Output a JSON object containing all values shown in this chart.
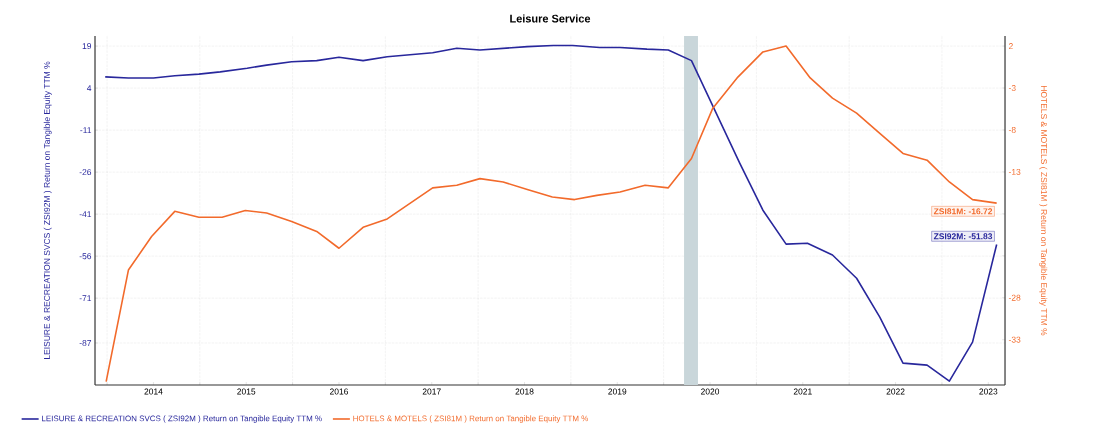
{
  "chart_data": {
    "type": "line",
    "title": "Leisure Service",
    "ylabel": "LEISURE & RECREATION SVCS ( ZSI92M ) Return on Tangible Equity TTM %",
    "y2label": "HOTELS & MOTELS ( ZSI81M ) Return on Tangible Equity TTM %",
    "xlim": [
      2013.87,
      2023.68
    ],
    "xticks": [
      {
        "value": 2014.5,
        "label": "2014"
      },
      {
        "value": 2015.5,
        "label": "2015"
      },
      {
        "value": 2016.5,
        "label": "2016"
      },
      {
        "value": 2017.5,
        "label": "2017"
      },
      {
        "value": 2018.5,
        "label": "2018"
      },
      {
        "value": 2019.5,
        "label": "2019"
      },
      {
        "value": 2020.5,
        "label": "2020"
      },
      {
        "value": 2021.5,
        "label": "2021"
      },
      {
        "value": 2022.5,
        "label": "2022"
      },
      {
        "value": 2023.5,
        "label": "2023"
      }
    ],
    "ylim": [
      -102,
      22.6
    ],
    "yticks": [
      19,
      4,
      -11,
      -26,
      -41,
      -56,
      -71,
      -87
    ],
    "y2lim": [
      -38.4,
      3.2
    ],
    "y2ticks": [
      2,
      -3,
      -8,
      -13,
      {
        "value": -18,
        "label": null
      },
      {
        "value": -23,
        "label": null
      },
      -28,
      -33
    ],
    "bands": [
      {
        "axis": "x",
        "from": 2020.22,
        "to": 2020.37,
        "color": "#c9d6da"
      }
    ],
    "grid": true,
    "legend": "bottom",
    "series": [
      {
        "name": "LEISURE & RECREATION SVCS ( ZSI92M ) Return on Tangible Equity TTM %",
        "color": "#28279c",
        "x": [
          2013.98,
          2014.23,
          2014.5,
          2014.73,
          2014.99,
          2015.22,
          2015.51,
          2015.72,
          2015.99,
          2016.26,
          2016.5,
          2016.76,
          2017.02,
          2017.51,
          2017.77,
          2018.02,
          2018.53,
          2018.81,
          2019.02,
          2019.31,
          2019.53,
          2019.82,
          2020.05,
          2020.3,
          2020.82,
          2021.07,
          2021.32,
          2021.55,
          2021.82,
          2022.08,
          2022.33,
          2022.58,
          2022.84,
          2023.08,
          2023.33,
          2023.59
        ],
        "values": [
          8.0,
          7.6,
          7.6,
          8.4,
          9.0,
          9.8,
          11.1,
          12.2,
          13.4,
          13.8,
          15.0,
          13.8,
          15.2,
          16.6,
          18.2,
          17.6,
          18.8,
          19.2,
          19.2,
          18.5,
          18.5,
          17.9,
          17.6,
          13.8,
          -22.8,
          -39.6,
          -51.7,
          -51.4,
          -55.6,
          -63.9,
          -77.8,
          -94.2,
          -94.9,
          -100.6,
          -86.7,
          -51.83
        ],
        "value_labels": [
          null,
          null,
          null,
          null,
          null,
          null,
          null,
          null,
          null,
          null,
          null,
          null,
          null,
          null,
          null,
          null,
          null,
          null,
          null,
          null,
          null,
          null,
          null,
          null,
          null,
          null,
          null,
          null,
          null,
          null,
          null,
          null,
          null,
          null,
          null,
          "ZSI92M: -51.83"
        ]
      },
      {
        "name": "HOTELS & MOTELS ( ZSI81M ) Return on Tangible Equity TTM %",
        "color": "#f26a2b",
        "axis": "y2",
        "x": [
          2013.99,
          2014.23,
          2014.48,
          2014.73,
          2014.99,
          2015.24,
          2015.49,
          2015.72,
          2015.99,
          2016.26,
          2016.5,
          2016.76,
          2017.02,
          2017.51,
          2017.77,
          2018.02,
          2018.27,
          2018.53,
          2018.8,
          2019.04,
          2019.28,
          2019.53,
          2019.8,
          2020.05,
          2020.3,
          2020.53,
          2020.8,
          2021.07,
          2021.32,
          2021.58,
          2021.82,
          2022.08,
          2022.33,
          2022.58,
          2022.84,
          2023.08,
          2023.33,
          2023.59
        ],
        "values": [
          -38.0,
          -24.7,
          -20.7,
          -17.7,
          -18.4,
          -18.4,
          -17.6,
          -17.9,
          -18.9,
          -20.1,
          -22.1,
          -19.6,
          -18.6,
          -14.9,
          -14.6,
          -13.8,
          -14.2,
          -15.1,
          -16.0,
          -16.3,
          -15.8,
          -15.4,
          -14.6,
          -14.9,
          -11.4,
          -5.4,
          -1.7,
          1.3,
          2.0,
          -1.8,
          -4.2,
          -6.0,
          -8.4,
          -10.8,
          -11.6,
          -14.2,
          -16.3,
          -16.72
        ],
        "value_labels": [
          null,
          null,
          null,
          null,
          null,
          null,
          null,
          null,
          null,
          null,
          null,
          null,
          null,
          null,
          null,
          null,
          null,
          null,
          null,
          null,
          null,
          null,
          null,
          null,
          null,
          null,
          null,
          null,
          null,
          null,
          null,
          null,
          null,
          null,
          null,
          null,
          null,
          "ZSI81M: -16.72"
        ]
      }
    ]
  }
}
